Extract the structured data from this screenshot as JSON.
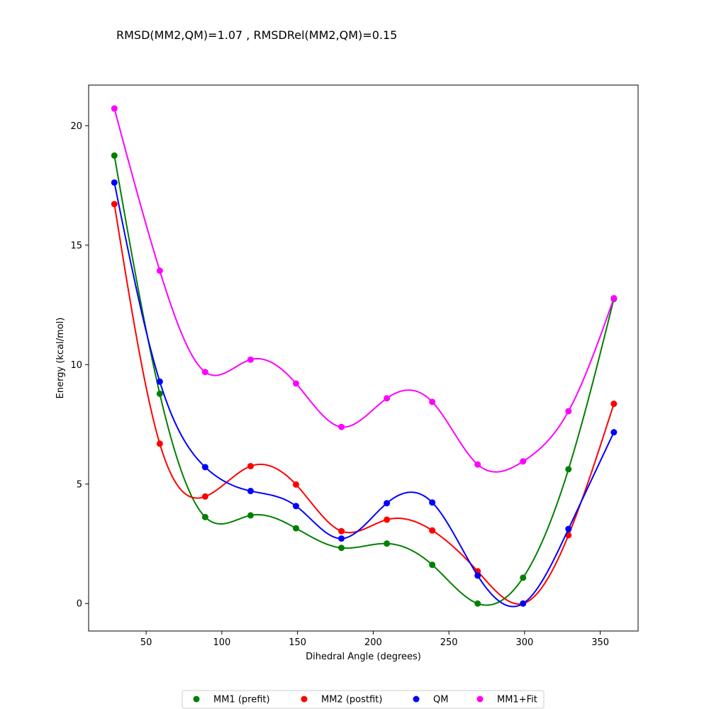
{
  "chart_data": {
    "type": "line",
    "title": "RMSD(MM2,QM)=1.07 , RMSDRel(MM2,QM)=0.15",
    "xlabel": "Dihedral Angle (degrees)",
    "ylabel": "Energy (kcal/mol)",
    "xlim": [
      12,
      375
    ],
    "ylim": [
      -1.15,
      21.7
    ],
    "xticks": [
      50,
      100,
      150,
      200,
      250,
      300,
      350
    ],
    "yticks": [
      0,
      5,
      10,
      15,
      20
    ],
    "grid": false,
    "legend_position": "bottom-center",
    "x": [
      29,
      59,
      89,
      119,
      149,
      179,
      209,
      239,
      269,
      299,
      329,
      359
    ],
    "series": [
      {
        "name": "MM1 (prefit)",
        "color": "#008000",
        "values": [
          18.75,
          8.78,
          3.62,
          3.69,
          3.15,
          2.33,
          2.51,
          1.62,
          0.0,
          1.08,
          5.62,
          12.75
        ]
      },
      {
        "name": "MM2 (postfit)",
        "color": "#ff0000",
        "values": [
          16.72,
          6.69,
          4.48,
          5.75,
          4.98,
          3.03,
          3.51,
          3.06,
          1.35,
          0.0,
          2.86,
          8.36
        ]
      },
      {
        "name": "QM",
        "color": "#0000ff",
        "values": [
          17.62,
          9.29,
          5.71,
          4.71,
          4.08,
          2.72,
          4.2,
          4.23,
          1.17,
          0.0,
          3.12,
          7.17
        ]
      },
      {
        "name": "MM1+Fit",
        "color": "#ff00ff",
        "values": [
          20.72,
          13.93,
          9.69,
          10.21,
          9.21,
          7.39,
          8.59,
          8.44,
          5.82,
          5.95,
          8.05,
          12.78
        ]
      }
    ]
  }
}
